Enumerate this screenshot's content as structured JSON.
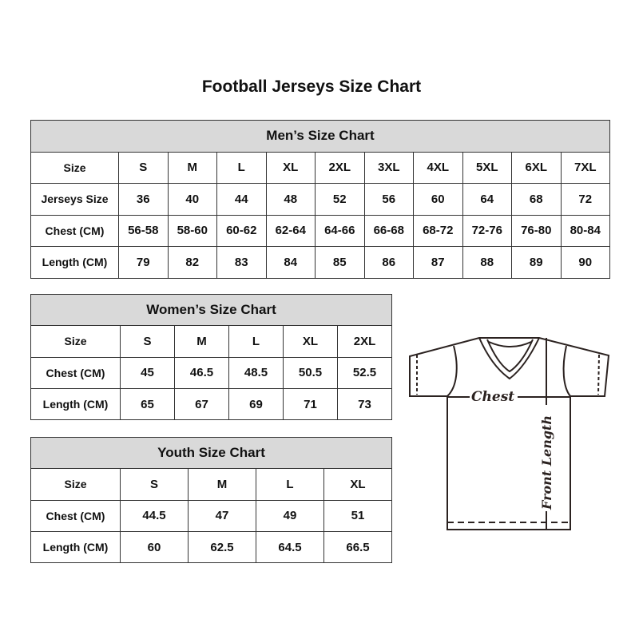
{
  "title": "Football Jerseys Size Chart",
  "men": {
    "caption": "Men’s Size Chart",
    "rows": [
      {
        "label": "Size",
        "values": [
          "S",
          "M",
          "L",
          "XL",
          "2XL",
          "3XL",
          "4XL",
          "5XL",
          "6XL",
          "7XL"
        ]
      },
      {
        "label": "Jerseys Size",
        "values": [
          "36",
          "40",
          "44",
          "48",
          "52",
          "56",
          "60",
          "64",
          "68",
          "72"
        ]
      },
      {
        "label": "Chest (CM)",
        "values": [
          "56-58",
          "58-60",
          "60-62",
          "62-64",
          "64-66",
          "66-68",
          "68-72",
          "72-76",
          "76-80",
          "80-84"
        ]
      },
      {
        "label": "Length (CM)",
        "values": [
          "79",
          "82",
          "83",
          "84",
          "85",
          "86",
          "87",
          "88",
          "89",
          "90"
        ]
      }
    ]
  },
  "women": {
    "caption": "Women’s Size Chart",
    "rows": [
      {
        "label": "Size",
        "values": [
          "S",
          "M",
          "L",
          "XL",
          "2XL"
        ]
      },
      {
        "label": "Chest (CM)",
        "values": [
          "45",
          "46.5",
          "48.5",
          "50.5",
          "52.5"
        ]
      },
      {
        "label": "Length (CM)",
        "values": [
          "65",
          "67",
          "69",
          "71",
          "73"
        ]
      }
    ]
  },
  "youth": {
    "caption": "Youth Size Chart",
    "rows": [
      {
        "label": "Size",
        "values": [
          "S",
          "M",
          "L",
          "XL"
        ]
      },
      {
        "label": "Chest (CM)",
        "values": [
          "44.5",
          "47",
          "49",
          "51"
        ]
      },
      {
        "label": "Length (CM)",
        "values": [
          "60",
          "62.5",
          "64.5",
          "66.5"
        ]
      }
    ]
  },
  "diagram": {
    "chest_label": "Chest",
    "length_label": "Front Length"
  },
  "colors": {
    "header_bg": "#d9d9d9",
    "line": "#2b2220"
  }
}
